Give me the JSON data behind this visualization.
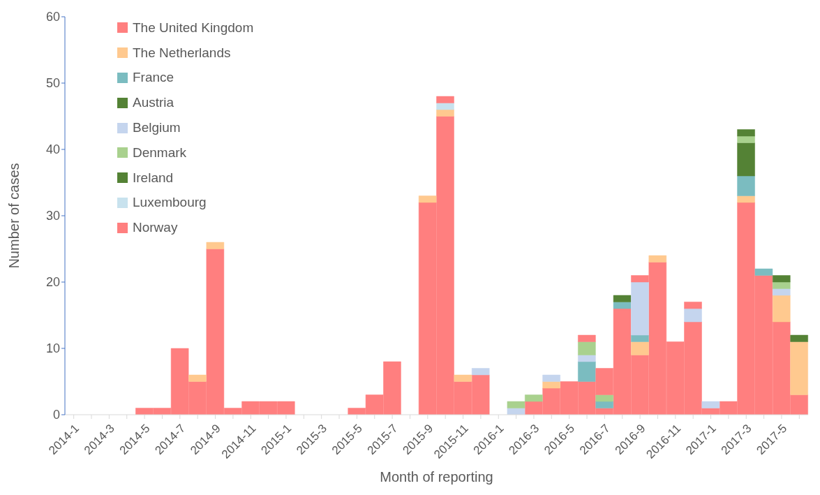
{
  "chart_data": {
    "type": "bar",
    "stacked": true,
    "xlabel": "Month of reporting",
    "ylabel": "Number of cases",
    "ylim": [
      0,
      60
    ],
    "yticks": [
      0,
      10,
      20,
      30,
      40,
      50,
      60
    ],
    "grid": false,
    "legend": "top left",
    "categories": [
      "2014-1",
      null,
      "2014-3",
      null,
      "2014-5",
      null,
      "2014-7",
      null,
      "2014-9",
      null,
      "2014-11",
      null,
      "2015-1",
      null,
      "2015-3",
      null,
      "2015-5",
      null,
      "2015-7",
      null,
      "2015-9",
      null,
      "2015-11",
      null,
      "2016-1",
      null,
      "2016-3",
      null,
      "2016-5",
      null,
      "2016-7",
      null,
      "2016-9",
      null,
      "2016-11",
      null,
      "2017-1",
      null,
      "2017-3",
      null,
      "2017-5",
      null
    ],
    "series": [
      {
        "name": "The United Kingdom",
        "color": "#ff7f7f",
        "values": [
          0,
          0,
          0,
          0,
          1,
          1,
          10,
          5,
          25,
          1,
          2,
          2,
          2,
          0,
          0,
          0,
          1,
          3,
          8,
          0,
          32,
          45,
          5,
          6,
          0,
          0,
          2,
          4,
          5,
          5,
          1,
          16,
          9,
          23,
          11,
          14,
          1,
          2,
          32,
          21,
          14,
          3
        ]
      },
      {
        "name": "The Netherlands",
        "color": "#ffc98f",
        "values": [
          0,
          0,
          0,
          0,
          0,
          0,
          0,
          1,
          1,
          0,
          0,
          0,
          0,
          0,
          0,
          0,
          0,
          0,
          0,
          0,
          1,
          1,
          1,
          0,
          0,
          0,
          0,
          1,
          0,
          0,
          0,
          0,
          2,
          1,
          0,
          0,
          0,
          0,
          1,
          0,
          4,
          8
        ]
      },
      {
        "name": "France",
        "color": "#7bbcc0",
        "values": [
          0,
          0,
          0,
          0,
          0,
          0,
          0,
          0,
          0,
          0,
          0,
          0,
          0,
          0,
          0,
          0,
          0,
          0,
          0,
          0,
          0,
          0,
          0,
          0,
          0,
          0,
          0,
          0,
          0,
          3,
          1,
          1,
          1,
          0,
          0,
          0,
          0,
          0,
          3,
          1,
          0,
          0
        ]
      },
      {
        "name": "Austria",
        "color": "#548235",
        "values": [
          0,
          0,
          0,
          0,
          0,
          0,
          0,
          0,
          0,
          0,
          0,
          0,
          0,
          0,
          0,
          0,
          0,
          0,
          0,
          0,
          0,
          0,
          0,
          0,
          0,
          0,
          0,
          0,
          0,
          0,
          0,
          1,
          0,
          0,
          0,
          0,
          0,
          0,
          5,
          0,
          0,
          1
        ]
      },
      {
        "name": "Belgium",
        "color": "#c5d5ee",
        "values": [
          0,
          0,
          0,
          0,
          0,
          0,
          0,
          0,
          0,
          0,
          0,
          0,
          0,
          0,
          0,
          0,
          0,
          0,
          0,
          0,
          0,
          0,
          0,
          1,
          0,
          1,
          0,
          1,
          0,
          1,
          0,
          0,
          8,
          0,
          0,
          2,
          1,
          0,
          0,
          0,
          1,
          0
        ]
      },
      {
        "name": "Denmark",
        "color": "#a9d18e",
        "values": [
          0,
          0,
          0,
          0,
          0,
          0,
          0,
          0,
          0,
          0,
          0,
          0,
          0,
          0,
          0,
          0,
          0,
          0,
          0,
          0,
          0,
          0,
          0,
          0,
          0,
          1,
          1,
          0,
          0,
          2,
          1,
          0,
          0,
          0,
          0,
          0,
          0,
          0,
          1,
          0,
          1,
          0
        ]
      },
      {
        "name": "Ireland",
        "color": "#548235",
        "values": [
          0,
          0,
          0,
          0,
          0,
          0,
          0,
          0,
          0,
          0,
          0,
          0,
          0,
          0,
          0,
          0,
          0,
          0,
          0,
          0,
          0,
          0,
          0,
          0,
          0,
          0,
          0,
          0,
          0,
          0,
          0,
          0,
          0,
          0,
          0,
          0,
          0,
          0,
          1,
          0,
          1,
          0
        ]
      },
      {
        "name": "Luxembourg",
        "color": "#c8e2ee",
        "values": [
          0,
          0,
          0,
          0,
          0,
          0,
          0,
          0,
          0,
          0,
          0,
          0,
          0,
          0,
          0,
          0,
          0,
          0,
          0,
          0,
          0,
          1,
          0,
          0,
          0,
          0,
          0,
          0,
          0,
          0,
          0,
          0,
          0,
          0,
          0,
          0,
          0,
          0,
          0,
          0,
          0,
          0
        ]
      },
      {
        "name": "Norway",
        "color": "#ff7f7f",
        "values": [
          0,
          0,
          0,
          0,
          0,
          0,
          0,
          0,
          0,
          0,
          0,
          0,
          0,
          0,
          0,
          0,
          0,
          0,
          0,
          0,
          0,
          1,
          0,
          0,
          0,
          0,
          0,
          0,
          0,
          1,
          4,
          0,
          1,
          0,
          0,
          1,
          0,
          0,
          0,
          0,
          0,
          0
        ]
      }
    ]
  }
}
